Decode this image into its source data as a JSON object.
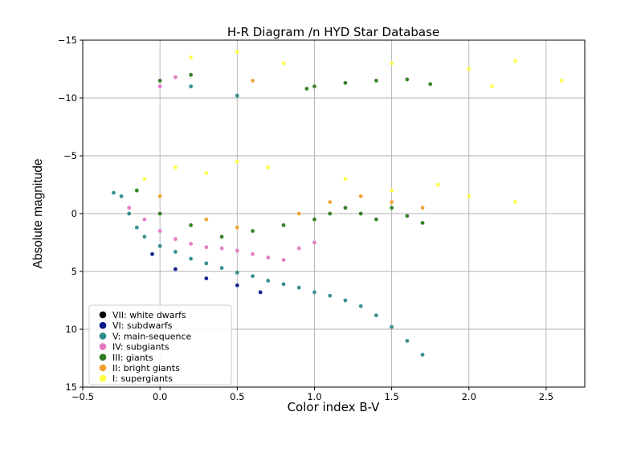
{
  "chart_data": {
    "type": "scatter",
    "title": "H-R Diagram /n HYD Star Database",
    "xlabel": "Color index B-V",
    "ylabel": "Absolute magnitude",
    "xlim": [
      -0.5,
      2.75
    ],
    "ylim": [
      15,
      -15
    ],
    "y_inverted": true,
    "grid": true,
    "legend_position": "lower-left",
    "xticks": [
      -0.5,
      0.0,
      0.5,
      1.0,
      1.5,
      2.0,
      2.5
    ],
    "xtick_labels": [
      "−0.5",
      "0.0",
      "0.5",
      "1.0",
      "1.5",
      "2.0",
      "2.5"
    ],
    "yticks": [
      -15,
      -10,
      -5,
      0,
      5,
      10,
      15
    ],
    "ytick_labels": [
      "−15",
      "−10",
      "−5",
      "0",
      "5",
      "10",
      "15"
    ],
    "series": [
      {
        "name": "VII: white dwarfs",
        "color": "#000000",
        "points": []
      },
      {
        "name": "VI: subdwarfs",
        "color": "#0a1a8c",
        "points": [
          [
            -0.05,
            3.5
          ],
          [
            0.1,
            4.8
          ],
          [
            0.3,
            5.6
          ],
          [
            0.5,
            6.2
          ],
          [
            0.65,
            6.8
          ]
        ]
      },
      {
        "name": "V: main-sequence",
        "color": "#2e8b8b",
        "points": [
          [
            -0.25,
            -1.5
          ],
          [
            -0.2,
            0.0
          ],
          [
            -0.15,
            1.2
          ],
          [
            -0.1,
            2.0
          ],
          [
            0.0,
            2.8
          ],
          [
            0.1,
            3.3
          ],
          [
            0.2,
            3.9
          ],
          [
            0.3,
            4.3
          ],
          [
            0.4,
            4.7
          ],
          [
            0.5,
            5.1
          ],
          [
            0.6,
            5.4
          ],
          [
            0.7,
            5.8
          ],
          [
            0.8,
            6.1
          ],
          [
            0.9,
            6.4
          ],
          [
            1.0,
            6.8
          ],
          [
            1.1,
            7.1
          ],
          [
            1.2,
            7.5
          ],
          [
            1.3,
            8.0
          ],
          [
            1.4,
            8.8
          ],
          [
            1.5,
            9.8
          ],
          [
            1.6,
            11.0
          ],
          [
            1.7,
            12.2
          ],
          [
            0.2,
            -11.0
          ],
          [
            0.5,
            -10.2
          ],
          [
            -0.3,
            -1.8
          ]
        ]
      },
      {
        "name": "IV: subgiants",
        "color": "#e377c2",
        "points": [
          [
            -0.2,
            -0.5
          ],
          [
            -0.1,
            0.5
          ],
          [
            0.0,
            1.5
          ],
          [
            0.1,
            2.2
          ],
          [
            0.2,
            2.6
          ],
          [
            0.3,
            2.9
          ],
          [
            0.4,
            3.0
          ],
          [
            0.5,
            3.2
          ],
          [
            0.6,
            3.5
          ],
          [
            0.7,
            3.8
          ],
          [
            0.8,
            4.0
          ],
          [
            0.9,
            3.0
          ],
          [
            1.0,
            2.5
          ],
          [
            0.1,
            -11.8
          ],
          [
            0.0,
            -11.0
          ]
        ]
      },
      {
        "name": "III: giants",
        "color": "#2e7d1e",
        "points": [
          [
            -0.15,
            -2.0
          ],
          [
            0.0,
            0.0
          ],
          [
            0.2,
            1.0
          ],
          [
            0.4,
            2.0
          ],
          [
            0.6,
            1.5
          ],
          [
            0.8,
            1.0
          ],
          [
            1.0,
            0.5
          ],
          [
            1.1,
            0.0
          ],
          [
            1.2,
            -0.5
          ],
          [
            1.3,
            0.0
          ],
          [
            1.4,
            0.5
          ],
          [
            1.5,
            -0.5
          ],
          [
            1.6,
            0.2
          ],
          [
            1.7,
            0.8
          ],
          [
            1.0,
            -11.0
          ],
          [
            1.2,
            -11.3
          ],
          [
            1.4,
            -11.5
          ],
          [
            1.6,
            -11.6
          ],
          [
            0.0,
            -11.5
          ],
          [
            0.2,
            -12.0
          ],
          [
            0.95,
            -10.8
          ],
          [
            1.75,
            -11.2
          ]
        ]
      },
      {
        "name": "II: bright giants",
        "color": "#f0a030",
        "points": [
          [
            0.0,
            -1.5
          ],
          [
            0.3,
            0.5
          ],
          [
            0.5,
            1.2
          ],
          [
            0.9,
            0.0
          ],
          [
            1.1,
            -1.0
          ],
          [
            1.3,
            -1.5
          ],
          [
            1.5,
            -1.0
          ],
          [
            1.7,
            -0.5
          ],
          [
            0.6,
            -11.5
          ]
        ]
      },
      {
        "name": "I: supergiants",
        "color": "#ffff44",
        "points": [
          [
            -0.1,
            -3.0
          ],
          [
            0.1,
            -4.0
          ],
          [
            0.3,
            -3.5
          ],
          [
            0.5,
            -4.5
          ],
          [
            0.7,
            -4.0
          ],
          [
            1.2,
            -3.0
          ],
          [
            1.5,
            -2.0
          ],
          [
            1.8,
            -2.5
          ],
          [
            2.0,
            -1.5
          ],
          [
            2.3,
            -1.0
          ],
          [
            0.2,
            -13.5
          ],
          [
            0.5,
            -14.0
          ],
          [
            0.8,
            -13.0
          ],
          [
            1.5,
            -13.0
          ],
          [
            2.0,
            -12.5
          ],
          [
            2.3,
            -13.2
          ],
          [
            2.6,
            -11.5
          ],
          [
            2.15,
            -11.0
          ]
        ]
      }
    ]
  }
}
